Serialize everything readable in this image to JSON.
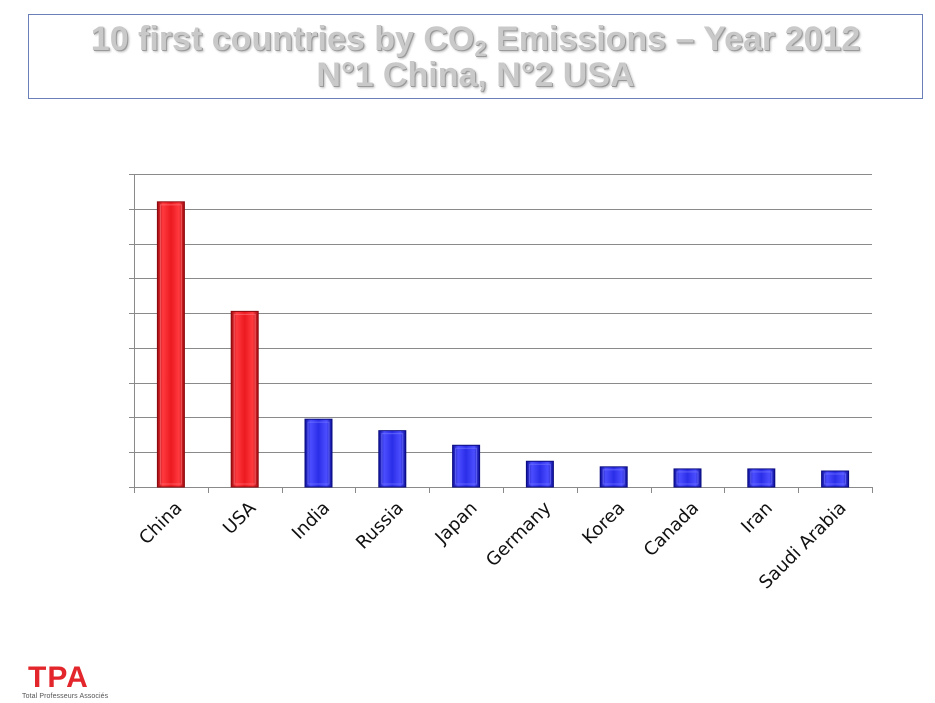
{
  "title": {
    "line1_prefix": "10 first countries by CO",
    "line1_sub": "2",
    "line1_suffix": " Emissions – Year 2012",
    "line2": "N°1 China, N°2 USA"
  },
  "chart_data": {
    "type": "bar",
    "categories": [
      "China",
      "USA",
      "India",
      "Russia",
      "Japan",
      "Germany",
      "Korea",
      "Canada",
      "Iran",
      "Saudi Arabia"
    ],
    "values": [
      8.2,
      5.05,
      1.95,
      1.62,
      1.2,
      0.74,
      0.58,
      0.52,
      0.52,
      0.46
    ],
    "ylim": [
      0,
      9
    ],
    "grid": true,
    "colors": [
      "#e8141b",
      "#e8141b",
      "#2b2ee8",
      "#2b2ee8",
      "#2b2ee8",
      "#2b2ee8",
      "#2b2ee8",
      "#2b2ee8",
      "#2b2ee8",
      "#2b2ee8"
    ],
    "highlight_color": "#e8141b",
    "base_color": "#2b2ee8"
  },
  "logo": {
    "text": "TPA",
    "subtitle": "Total Professeurs Associés"
  }
}
